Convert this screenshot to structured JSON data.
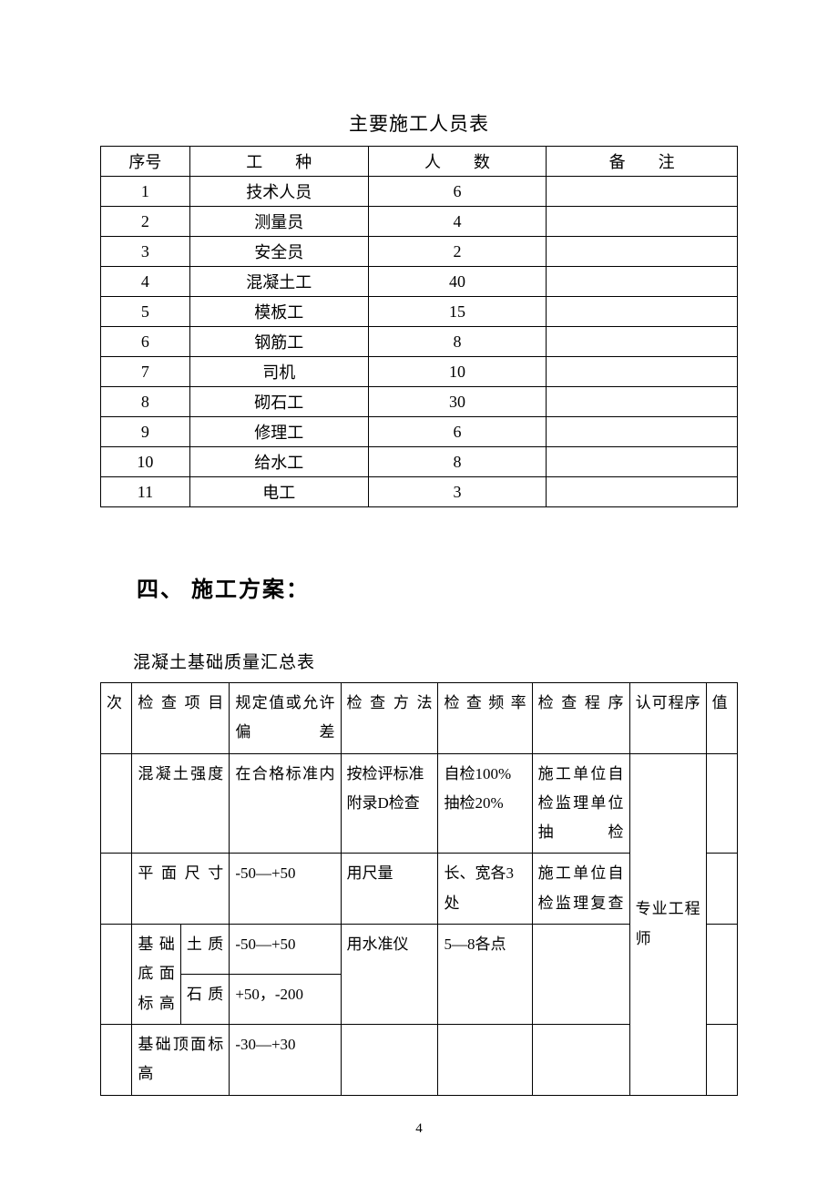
{
  "table1": {
    "title": "主要施工人员表",
    "headers": [
      "序号",
      "工　　种",
      "人　　数",
      "备　　注"
    ],
    "rows": [
      [
        "1",
        "技术人员",
        "6",
        ""
      ],
      [
        "2",
        "测量员",
        "4",
        ""
      ],
      [
        "3",
        "安全员",
        "2",
        ""
      ],
      [
        "4",
        "混凝土工",
        "40",
        ""
      ],
      [
        "5",
        "模板工",
        "15",
        ""
      ],
      [
        "6",
        "钢筋工",
        "8",
        ""
      ],
      [
        "7",
        "司机",
        "10",
        ""
      ],
      [
        "8",
        "砌石工",
        "30",
        ""
      ],
      [
        "9",
        "修理工",
        "6",
        ""
      ],
      [
        "10",
        "给水工",
        "8",
        ""
      ],
      [
        "11",
        "电工",
        "3",
        ""
      ]
    ]
  },
  "section_heading": "四、 施工方案：",
  "table2": {
    "title": "混凝土基础质量汇总表",
    "headers": [
      "次",
      "检查项目",
      "规定值或允许偏差",
      "检查方法",
      "检查频率",
      "检查程序",
      "认可程序",
      "值"
    ],
    "r1": {
      "item": "混凝土强度",
      "spec": "在合格标准内",
      "method": "按检评标准附录D检查",
      "freq": "自检100%抽检20%",
      "proc": "施工单位自检监理单位抽检"
    },
    "r2": {
      "item": "平面尺寸",
      "spec": "-50—+50",
      "method": "用尺量",
      "freq": "长、宽各3处",
      "proc": "施工单位自检监理复查"
    },
    "r3": {
      "item_group": "基础底面标高",
      "sub1": "土质",
      "spec1": "-50—+50",
      "method": "用水准仪",
      "freq": "5—8各点",
      "sub2": "石质",
      "spec2": "+50，-200"
    },
    "r4": {
      "item": "基础顶面标高",
      "spec": "-30—+30"
    },
    "approve": "专业工程师"
  },
  "page_number": "4"
}
